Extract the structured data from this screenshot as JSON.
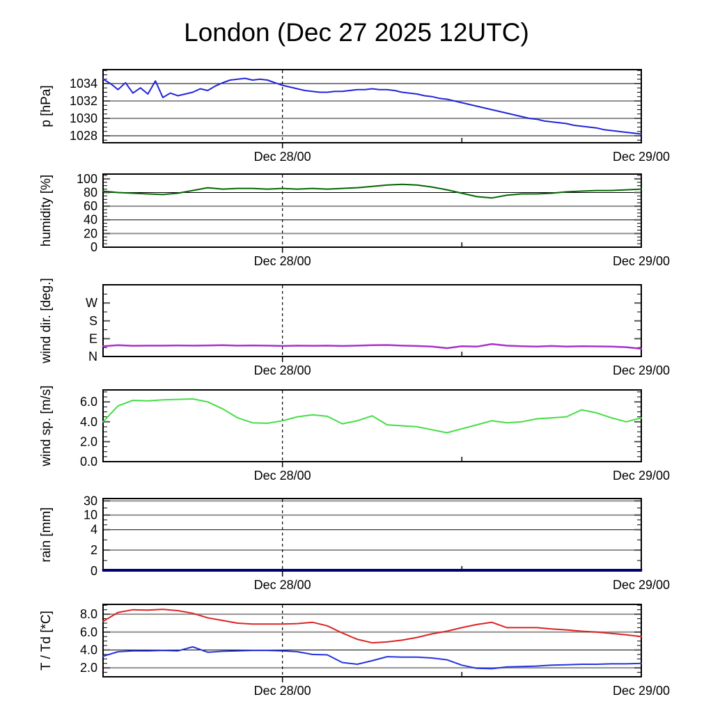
{
  "title": "London (Dec 27 2025 12UTC)",
  "colors": {
    "pressure": "#2222dd",
    "humidity": "#006600",
    "wind_direction": "#aa30cc",
    "wind_speed": "#44dd44",
    "rain": "#000080",
    "temperature": "#dd2222",
    "dewpoint": "#2233dd",
    "grid_gray": "#909090",
    "grid_black": "#000000"
  },
  "chart_data": {
    "type": "line",
    "x_axis": {
      "start": "Dec 27 12:00 UTC",
      "total_hours": 36,
      "ticks": [
        {
          "hour": 12,
          "label": "Dec 28/00",
          "style": "major-dashed"
        },
        {
          "hour": 24,
          "label": "",
          "style": "minor"
        },
        {
          "hour": 36,
          "label": "Dec 29/00",
          "style": "edge"
        }
      ]
    },
    "panels": [
      {
        "id": "pressure",
        "ylabel": "p [hPa]",
        "ymin": 1027.2,
        "ymax": 1035.6,
        "ylabels": [
          {
            "v": 1028,
            "t": "1028"
          },
          {
            "v": 1030,
            "t": "1030"
          },
          {
            "v": 1032,
            "t": "1032"
          },
          {
            "v": 1034,
            "t": "1034"
          }
        ],
        "gridlines": [
          {
            "v": 1028,
            "style": "black"
          },
          {
            "v": 1030,
            "style": "gray"
          },
          {
            "v": 1032,
            "style": "gray"
          },
          {
            "v": 1034,
            "style": "black"
          }
        ],
        "ticks_major": [
          1028,
          1030,
          1032,
          1034
        ],
        "ticks_minor": [
          1027.5,
          1028.5,
          1029,
          1029.5,
          1030.5,
          1031,
          1031.5,
          1032.5,
          1033,
          1033.5,
          1034.5,
          1035,
          1035.5
        ],
        "series": [
          {
            "name": "pressure",
            "color": "#2222dd",
            "width": 2,
            "step_hours": 0.5,
            "values": [
              1034.5,
              1034.0,
              1033.3,
              1034.1,
              1032.9,
              1033.5,
              1032.8,
              1034.3,
              1032.4,
              1032.9,
              1032.6,
              1032.8,
              1033.0,
              1033.4,
              1033.2,
              1033.7,
              1034.1,
              1034.4,
              1034.5,
              1034.6,
              1034.4,
              1034.5,
              1034.4,
              1034.1,
              1033.8,
              1033.6,
              1033.4,
              1033.2,
              1033.1,
              1033.0,
              1033.0,
              1033.1,
              1033.1,
              1033.2,
              1033.3,
              1033.3,
              1033.4,
              1033.3,
              1033.3,
              1033.2,
              1033.0,
              1032.9,
              1032.8,
              1032.6,
              1032.5,
              1032.3,
              1032.2,
              1032.0,
              1031.8,
              1031.6,
              1031.4,
              1031.2,
              1031.0,
              1030.8,
              1030.6,
              1030.4,
              1030.2,
              1030.0,
              1029.9,
              1029.7,
              1029.6,
              1029.5,
              1029.4,
              1029.2,
              1029.1,
              1029.0,
              1028.9,
              1028.7,
              1028.6,
              1028.5,
              1028.4,
              1028.3,
              1028.2
            ]
          }
        ]
      },
      {
        "id": "humidity",
        "ylabel": "humidity [%]",
        "ymin": 0,
        "ymax": 107,
        "ylabels": [
          {
            "v": 0,
            "t": "0"
          },
          {
            "v": 20,
            "t": "20"
          },
          {
            "v": 40,
            "t": "40"
          },
          {
            "v": 60,
            "t": "60"
          },
          {
            "v": 80,
            "t": "80"
          },
          {
            "v": 100,
            "t": "100"
          }
        ],
        "gridlines": [
          {
            "v": 20,
            "style": "gray"
          },
          {
            "v": 40,
            "style": "black"
          },
          {
            "v": 60,
            "style": "gray"
          },
          {
            "v": 80,
            "style": "black"
          }
        ],
        "ticks_major": [
          20,
          40,
          60,
          80,
          100
        ],
        "ticks_minor": [
          5,
          10,
          15,
          25,
          30,
          35,
          45,
          50,
          55,
          65,
          70,
          75,
          85,
          90,
          95,
          105
        ],
        "series": [
          {
            "name": "humidity",
            "color": "#006600",
            "width": 2,
            "step_hours": 1,
            "values": [
              82,
              80,
              79,
              78,
              77,
              79,
              83,
              87,
              85,
              86,
              86,
              85,
              86,
              85,
              86,
              85,
              86,
              87,
              89,
              91,
              92,
              91,
              88,
              84,
              79,
              74,
              72,
              76,
              78,
              78,
              79,
              81,
              82,
              83,
              83,
              84,
              85
            ]
          }
        ]
      },
      {
        "id": "wind-direction",
        "ylabel": "wind dir. [deg.]",
        "ymin": 0,
        "ymax": 362,
        "ylabels": [
          {
            "v": 0,
            "t": "N"
          },
          {
            "v": 90,
            "t": "E"
          },
          {
            "v": 180,
            "t": "S"
          },
          {
            "v": 270,
            "t": "W"
          }
        ],
        "gridlines": [],
        "ticks_major": [
          90,
          180,
          270
        ],
        "ticks_minor": [
          45,
          135,
          225,
          315,
          360
        ],
        "series": [
          {
            "name": "wind-direction",
            "color": "#aa30cc",
            "width": 2.5,
            "step_hours": 1,
            "values": [
              52,
              57,
              54,
              55,
              55,
              56,
              55,
              56,
              57,
              55,
              56,
              55,
              53,
              55,
              54,
              55,
              53,
              55,
              57,
              58,
              55,
              53,
              50,
              42,
              52,
              50,
              63,
              55,
              52,
              50,
              53,
              50,
              52,
              51,
              50,
              47,
              39
            ]
          }
        ]
      },
      {
        "id": "wind-speed",
        "ylabel": "wind sp. [m/s]",
        "ymin": 0,
        "ymax": 7.2,
        "ylabels": [
          {
            "v": 0,
            "t": "0.0"
          },
          {
            "v": 2,
            "t": "2.0"
          },
          {
            "v": 4,
            "t": "4.0"
          },
          {
            "v": 6,
            "t": "6.0"
          }
        ],
        "gridlines": [],
        "ticks_major": [
          2,
          4,
          6
        ],
        "ticks_minor": [
          0.5,
          1,
          1.5,
          2.5,
          3,
          3.5,
          4.5,
          5,
          5.5,
          6.5,
          7
        ],
        "series": [
          {
            "name": "wind-speed",
            "color": "#44dd44",
            "width": 2,
            "step_hours": 1,
            "values": [
              4.0,
              5.6,
              6.15,
              6.1,
              6.2,
              6.25,
              6.3,
              6.0,
              5.3,
              4.4,
              3.9,
              3.85,
              4.1,
              4.5,
              4.7,
              4.55,
              3.8,
              4.1,
              4.6,
              3.7,
              3.6,
              3.5,
              3.2,
              2.9,
              3.3,
              3.7,
              4.1,
              3.9,
              4.0,
              4.3,
              4.4,
              4.5,
              5.2,
              4.9,
              4.4,
              4.0,
              4.4
            ]
          }
        ]
      },
      {
        "id": "rain",
        "ylabel": "rain [mm]",
        "ymin": 0,
        "ymax": 35,
        "ymap": [
          [
            0,
            0
          ],
          [
            2,
            0.288
          ],
          [
            4,
            0.57
          ],
          [
            10,
            0.772
          ],
          [
            30,
            0.968
          ],
          [
            35,
            1
          ]
        ],
        "ylabels": [
          {
            "v": 0,
            "t": "0"
          },
          {
            "v": 2,
            "t": "2"
          },
          {
            "v": 4,
            "t": "4"
          },
          {
            "v": 10,
            "t": "10"
          },
          {
            "v": 30,
            "t": "30"
          }
        ],
        "gridlines": [
          {
            "v": 2,
            "style": "gray"
          },
          {
            "v": 4,
            "style": "black"
          },
          {
            "v": 10,
            "style": "gray"
          },
          {
            "v": 30,
            "style": "gray"
          }
        ],
        "ticks_major": [
          2,
          4,
          10,
          30
        ],
        "ticks_minor": [
          1,
          3,
          6,
          8,
          20
        ],
        "series": [
          {
            "name": "rain",
            "color": "#000080",
            "width": 3,
            "step_hours": 1,
            "values": [
              0,
              0,
              0,
              0,
              0,
              0,
              0,
              0,
              0,
              0,
              0,
              0,
              0,
              0,
              0,
              0,
              0,
              0,
              0,
              0,
              0,
              0,
              0,
              0,
              0,
              0,
              0,
              0,
              0,
              0,
              0,
              0,
              0,
              0,
              0,
              0,
              0
            ]
          }
        ]
      },
      {
        "id": "temperature",
        "ylabel": "T / Td [*C]",
        "ymin": 1.0,
        "ymax": 9.1,
        "ylabels": [
          {
            "v": 2,
            "t": "2.0"
          },
          {
            "v": 4,
            "t": "4.0"
          },
          {
            "v": 6,
            "t": "6.0"
          },
          {
            "v": 8,
            "t": "8.0"
          }
        ],
        "gridlines": [
          {
            "v": 2,
            "style": "gray"
          },
          {
            "v": 4,
            "style": "black"
          },
          {
            "v": 6,
            "style": "gray"
          },
          {
            "v": 8,
            "style": "gray"
          }
        ],
        "ticks_major": [
          2,
          4,
          6,
          8
        ],
        "ticks_minor": [
          1.5,
          2.5,
          3,
          3.5,
          4.5,
          5,
          5.5,
          6.5,
          7,
          7.5,
          8.5,
          9
        ],
        "series": [
          {
            "name": "temperature",
            "color": "#dd2222",
            "width": 2,
            "step_hours": 1,
            "values": [
              7.2,
              8.2,
              8.5,
              8.45,
              8.55,
              8.4,
              8.1,
              7.6,
              7.3,
              7.0,
              6.9,
              6.9,
              6.9,
              6.95,
              7.1,
              6.7,
              5.9,
              5.2,
              4.8,
              4.9,
              5.1,
              5.4,
              5.8,
              6.1,
              6.5,
              6.85,
              7.1,
              6.5,
              6.5,
              6.5,
              6.35,
              6.25,
              6.1,
              6.0,
              5.85,
              5.7,
              5.5
            ]
          },
          {
            "name": "dewpoint",
            "color": "#2233dd",
            "width": 2,
            "step_hours": 1,
            "values": [
              3.3,
              3.8,
              3.9,
              3.9,
              3.95,
              3.9,
              4.35,
              3.75,
              3.85,
              3.9,
              3.95,
              3.95,
              3.9,
              3.8,
              3.5,
              3.45,
              2.6,
              2.4,
              2.8,
              3.25,
              3.2,
              3.2,
              3.1,
              2.9,
              2.3,
              1.95,
              1.9,
              2.1,
              2.15,
              2.2,
              2.3,
              2.35,
              2.4,
              2.4,
              2.45,
              2.45,
              2.5
            ]
          }
        ]
      }
    ]
  }
}
